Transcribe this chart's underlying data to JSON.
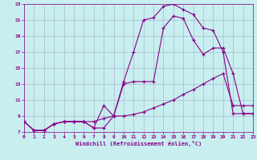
{
  "xlabel": "Windchill (Refroidissement éolien,°C)",
  "xlim": [
    0,
    23
  ],
  "ylim": [
    7,
    23
  ],
  "yticks": [
    7,
    9,
    11,
    13,
    15,
    17,
    19,
    21,
    23
  ],
  "xticks": [
    0,
    1,
    2,
    3,
    4,
    5,
    6,
    7,
    8,
    9,
    10,
    11,
    12,
    13,
    14,
    15,
    16,
    17,
    18,
    19,
    20,
    21,
    22,
    23
  ],
  "background_color": "#c8eef0",
  "line_color": "#880088",
  "grid_color": "#aab8cc",
  "line1_x": [
    0,
    1,
    2,
    3,
    4,
    5,
    6,
    7,
    8,
    9,
    10,
    11,
    12,
    13,
    14,
    15,
    16,
    17,
    18,
    19,
    20,
    21,
    22,
    23
  ],
  "line1_y": [
    8.3,
    7.2,
    7.2,
    8.0,
    8.3,
    8.3,
    8.3,
    7.5,
    10.3,
    9.0,
    13.3,
    17.0,
    21.0,
    21.3,
    22.7,
    23.0,
    22.3,
    21.7,
    20.0,
    19.7,
    17.0,
    9.3,
    9.3,
    9.3
  ],
  "line2_x": [
    0,
    1,
    2,
    3,
    4,
    5,
    6,
    7,
    8,
    9,
    10,
    11,
    12,
    13,
    14,
    15,
    16,
    17,
    18,
    19,
    20,
    21,
    22,
    23
  ],
  "line2_y": [
    8.3,
    7.2,
    7.2,
    8.0,
    8.3,
    8.3,
    8.3,
    7.5,
    7.5,
    9.0,
    13.0,
    13.3,
    13.3,
    13.3,
    20.0,
    21.5,
    21.2,
    18.5,
    16.7,
    17.5,
    17.5,
    14.3,
    9.3,
    9.3
  ],
  "line3_x": [
    0,
    1,
    2,
    3,
    4,
    5,
    6,
    7,
    8,
    9,
    10,
    11,
    12,
    13,
    14,
    15,
    16,
    17,
    18,
    19,
    20,
    21,
    22,
    23
  ],
  "line3_y": [
    8.3,
    7.2,
    7.2,
    8.0,
    8.3,
    8.3,
    8.3,
    8.3,
    8.7,
    9.0,
    9.0,
    9.2,
    9.5,
    10.0,
    10.5,
    11.0,
    11.7,
    12.3,
    13.0,
    13.7,
    14.3,
    10.3,
    10.3,
    10.3
  ]
}
